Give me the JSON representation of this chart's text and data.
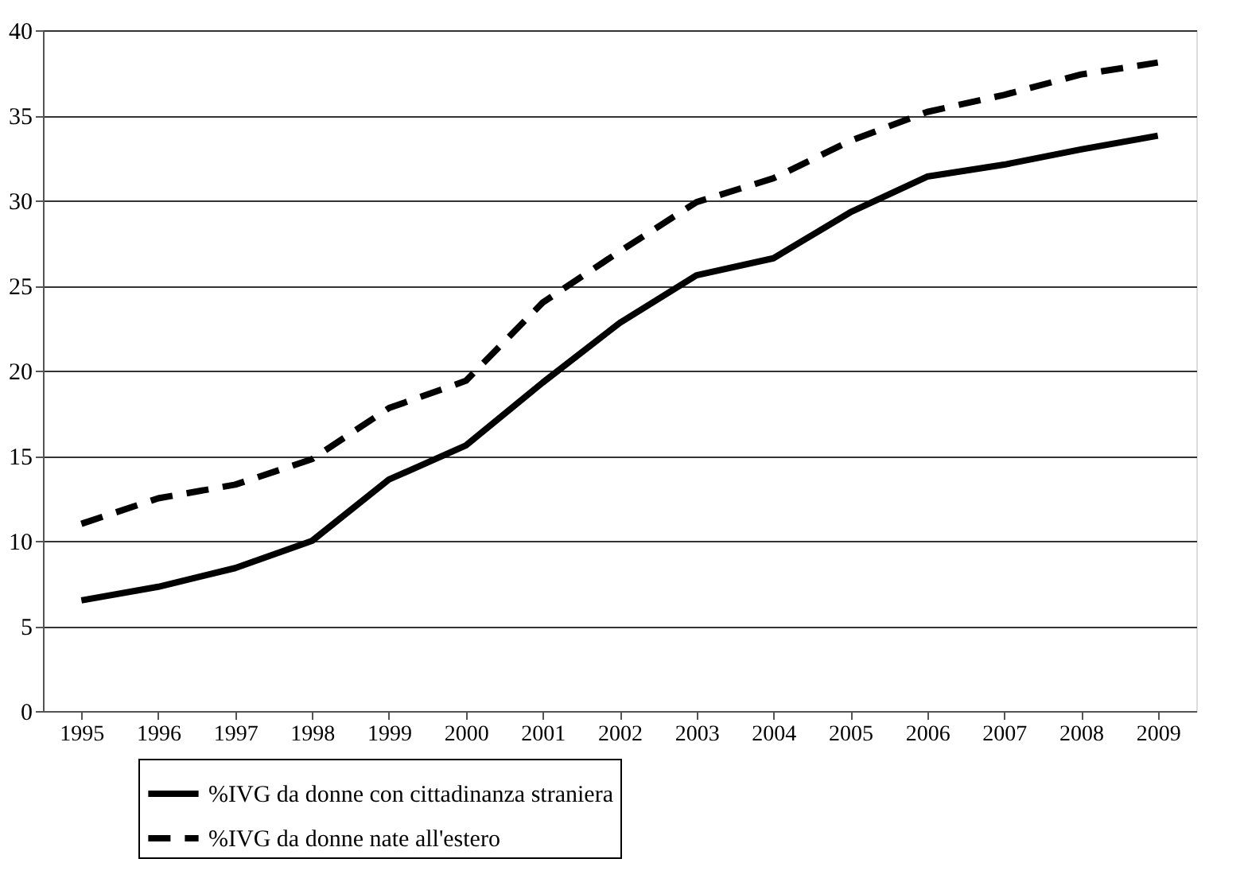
{
  "chart_data": {
    "type": "line",
    "categories": [
      "1995",
      "1996",
      "1997",
      "1998",
      "1999",
      "2000",
      "2001",
      "2002",
      "2003",
      "2004",
      "2005",
      "2006",
      "2007",
      "2008",
      "2009"
    ],
    "ylim": [
      0,
      40
    ],
    "yticks": [
      0,
      5,
      10,
      15,
      20,
      25,
      30,
      35,
      40
    ],
    "grid": "y",
    "legend": "bottom",
    "marker": "none",
    "series": [
      {
        "name": "%IVG da donne con cittadinanza straniera",
        "color": "#000000",
        "line_style": "solid",
        "values": [
          6.5,
          7.3,
          8.4,
          10,
          13.6,
          15.6,
          19.3,
          22.8,
          25.6,
          26.6,
          29.3,
          31.4,
          32.1,
          33,
          33.8
        ]
      },
      {
        "name": "%IVG da donne nate all'estero",
        "color": "#000000",
        "line_style": "dashed",
        "values": [
          11,
          12.5,
          13.3,
          14.8,
          17.8,
          19.4,
          24,
          27,
          29.9,
          31.3,
          33.5,
          35.2,
          36.2,
          37.4,
          38.1
        ]
      }
    ]
  }
}
